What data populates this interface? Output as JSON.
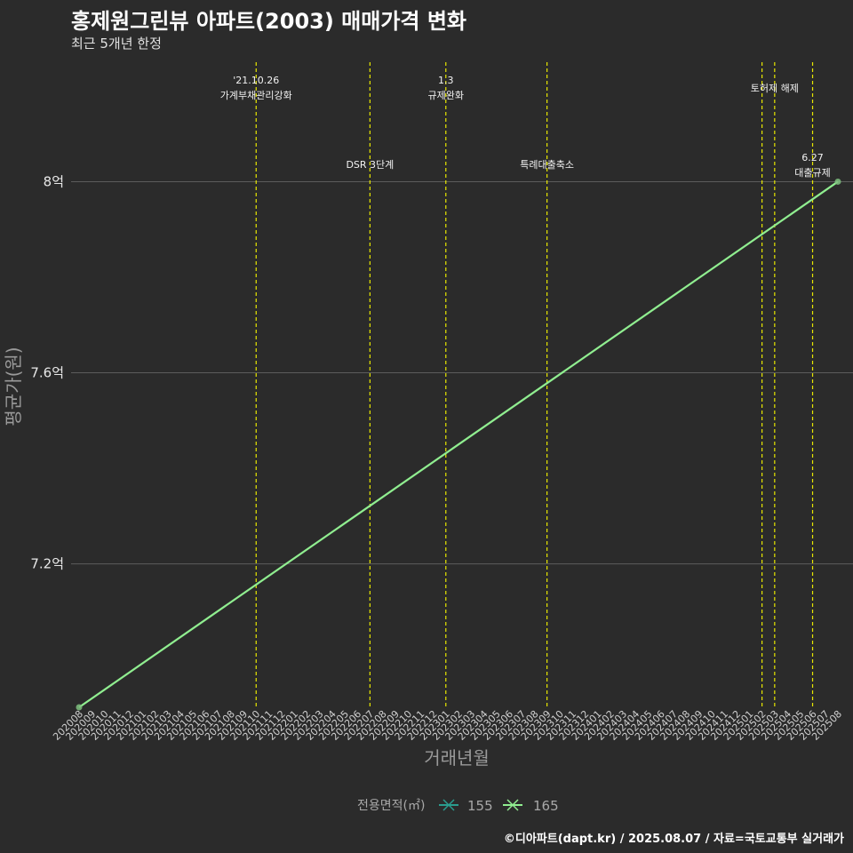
{
  "header": {
    "title": "홍제원그린뷰 아파트(2003) 매매가격 변화",
    "subtitle": "최근 5개년 한정"
  },
  "caption": "©디아파트(dapt.kr) / 2025.08.07 / 자료=국토교통부 실거래가",
  "colors": {
    "background": "#2b2b2b",
    "grid": "#5c5c5c",
    "event_line": "#e8e800",
    "series_155": "#2a9d8f",
    "series_165": "#90ee90"
  },
  "chart_data": {
    "type": "line",
    "xlabel": "거래년월",
    "ylabel": "평균가(원)",
    "ylim": [
      6.9,
      8.25
    ],
    "y_ticks": [
      {
        "value": 7.2,
        "label": "7.2억"
      },
      {
        "value": 7.6,
        "label": "7.6억"
      },
      {
        "value": 8.0,
        "label": "8억"
      }
    ],
    "x_categories": [
      "202008",
      "202009",
      "202010",
      "202011",
      "202012",
      "202101",
      "202102",
      "202103",
      "202104",
      "202105",
      "202106",
      "202107",
      "202108",
      "202109",
      "202110",
      "202111",
      "202112",
      "202201",
      "202202",
      "202203",
      "202204",
      "202205",
      "202206",
      "202207",
      "202208",
      "202209",
      "202210",
      "202211",
      "202212",
      "202301",
      "202302",
      "202303",
      "202304",
      "202305",
      "202306",
      "202307",
      "202308",
      "202309",
      "202310",
      "202311",
      "202312",
      "202401",
      "202402",
      "202403",
      "202404",
      "202405",
      "202406",
      "202407",
      "202408",
      "202409",
      "202410",
      "202411",
      "202412",
      "202501",
      "202502",
      "202503",
      "202504",
      "202505",
      "202506",
      "202507",
      "202508"
    ],
    "series": [
      {
        "name": "155",
        "points": []
      },
      {
        "name": "165",
        "points": [
          {
            "x": "202008",
            "y": 6.9
          },
          {
            "x": "202508",
            "y": 8.0
          }
        ]
      }
    ],
    "events": [
      {
        "x": "202110",
        "lines": [
          "'21.10.26",
          "가계부채관리강화"
        ],
        "row": "top"
      },
      {
        "x": "202207",
        "lines": [
          "DSR 3단계"
        ],
        "row": "mid"
      },
      {
        "x": "202301",
        "lines": [
          "1.3",
          "규제완화"
        ],
        "row": "top"
      },
      {
        "x": "202309",
        "lines": [
          "특례대출축소"
        ],
        "row": "mid"
      },
      {
        "x": "202502",
        "lines": [],
        "row": "none"
      },
      {
        "x": "202503",
        "lines": [
          "토허제 해제"
        ],
        "row": "top2"
      },
      {
        "x": "202506",
        "lines": [
          "6.27",
          "대출규제"
        ],
        "row": "right"
      }
    ],
    "legend": {
      "title": "전용면적(㎡)",
      "items": [
        "155",
        "165"
      ],
      "position": "bottom"
    }
  }
}
